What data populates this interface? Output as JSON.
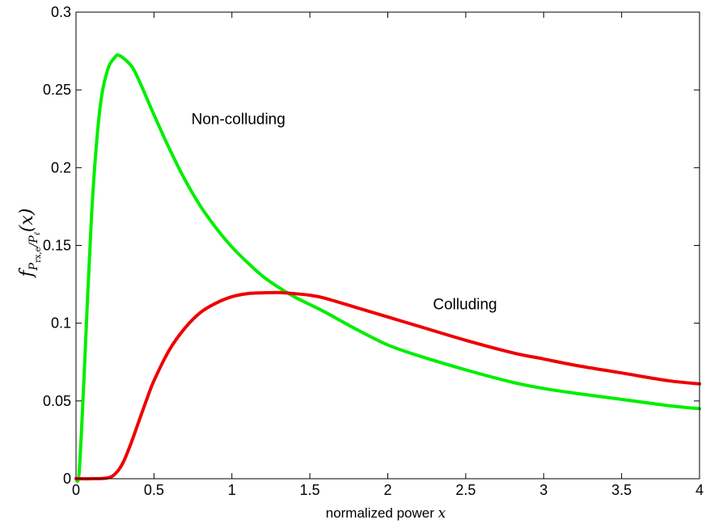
{
  "chart_data": {
    "type": "line",
    "xlabel": "normalized power",
    "xlabel_var": "x",
    "ylabel": {
      "f": "f",
      "sub_P": "P",
      "sub_rx": "rx,e",
      "sub_sep": "/P",
      "sub_l": "ℓ",
      "arg": "(x)"
    },
    "xlim": [
      0,
      4
    ],
    "ylim": [
      0,
      0.3
    ],
    "xticks": [
      0,
      0.5,
      1,
      1.5,
      2,
      2.5,
      3,
      3.5,
      4
    ],
    "xtick_labels": [
      "0",
      "0.5",
      "1",
      "1.5",
      "2",
      "2.5",
      "3",
      "3.5",
      "4"
    ],
    "yticks": [
      0,
      0.05,
      0.1,
      0.15,
      0.2,
      0.25,
      0.3
    ],
    "ytick_labels": [
      "0",
      "0.05",
      "0.1",
      "0.15",
      "0.2",
      "0.25",
      "0.3"
    ],
    "grid": false,
    "annotations": [
      {
        "text": "Non-colluding",
        "x": 0.74,
        "y": 0.228
      },
      {
        "text": "Colluding",
        "x": 2.29,
        "y": 0.109
      }
    ],
    "series": [
      {
        "color": "#00ee00",
        "x": [
          0,
          0.02,
          0.05,
          0.1,
          0.15,
          0.2,
          0.25,
          0.28,
          0.35,
          0.4,
          0.5,
          0.6,
          0.7,
          0.8,
          0.9,
          1.0,
          1.1,
          1.2,
          1.3,
          1.4,
          1.5,
          1.6,
          1.8,
          2.0,
          2.2,
          2.5,
          2.8,
          3.0,
          3.2,
          3.5,
          3.8,
          4.0
        ],
        "values": [
          0,
          0.004,
          0.062,
          0.17,
          0.235,
          0.262,
          0.271,
          0.272,
          0.266,
          0.257,
          0.234,
          0.212,
          0.192,
          0.175,
          0.161,
          0.149,
          0.139,
          0.13,
          0.123,
          0.117,
          0.112,
          0.107,
          0.096,
          0.086,
          0.079,
          0.07,
          0.062,
          0.058,
          0.055,
          0.051,
          0.047,
          0.045
        ]
      },
      {
        "color": "#ee0000",
        "x": [
          0,
          0.1,
          0.2,
          0.25,
          0.3,
          0.35,
          0.4,
          0.45,
          0.5,
          0.6,
          0.7,
          0.8,
          0.9,
          1.0,
          1.1,
          1.2,
          1.3,
          1.4,
          1.5,
          1.6,
          1.8,
          2.0,
          2.2,
          2.5,
          2.8,
          3.0,
          3.2,
          3.5,
          3.8,
          4.0
        ],
        "values": [
          0,
          0,
          0.0005,
          0.003,
          0.01,
          0.022,
          0.036,
          0.05,
          0.063,
          0.083,
          0.097,
          0.107,
          0.113,
          0.117,
          0.119,
          0.1195,
          0.1197,
          0.119,
          0.118,
          0.116,
          0.11,
          0.104,
          0.098,
          0.089,
          0.081,
          0.077,
          0.073,
          0.068,
          0.063,
          0.061
        ]
      }
    ]
  }
}
